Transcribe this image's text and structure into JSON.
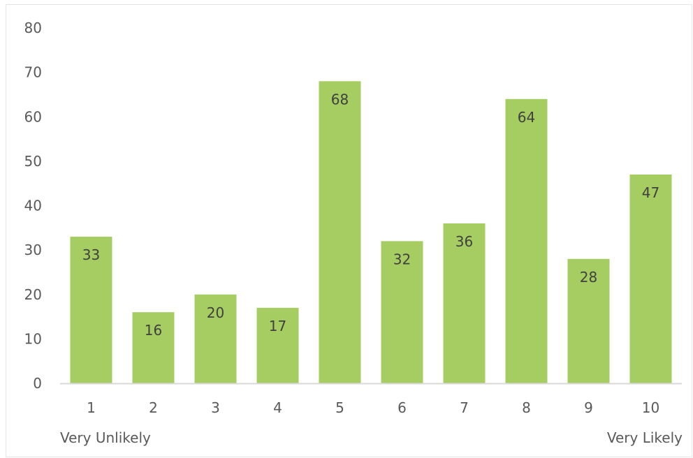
{
  "chart_data": {
    "type": "bar",
    "categories": [
      "1",
      "2",
      "3",
      "4",
      "5",
      "6",
      "7",
      "8",
      "9",
      "10"
    ],
    "values": [
      33,
      16,
      20,
      17,
      68,
      32,
      36,
      64,
      28,
      47
    ],
    "y_ticks": [
      "0",
      "10",
      "20",
      "30",
      "40",
      "50",
      "60",
      "70",
      "80"
    ],
    "ylim": [
      0,
      80
    ],
    "title": "",
    "xlabel": "",
    "ylabel": "",
    "x_end_labels": {
      "left": "Very Unlikely",
      "right": "Very Likely"
    },
    "data_labels": true,
    "grid": false,
    "legend": "none",
    "bar_color": "#a5cd62",
    "axis_color": "#d9d9d9"
  }
}
